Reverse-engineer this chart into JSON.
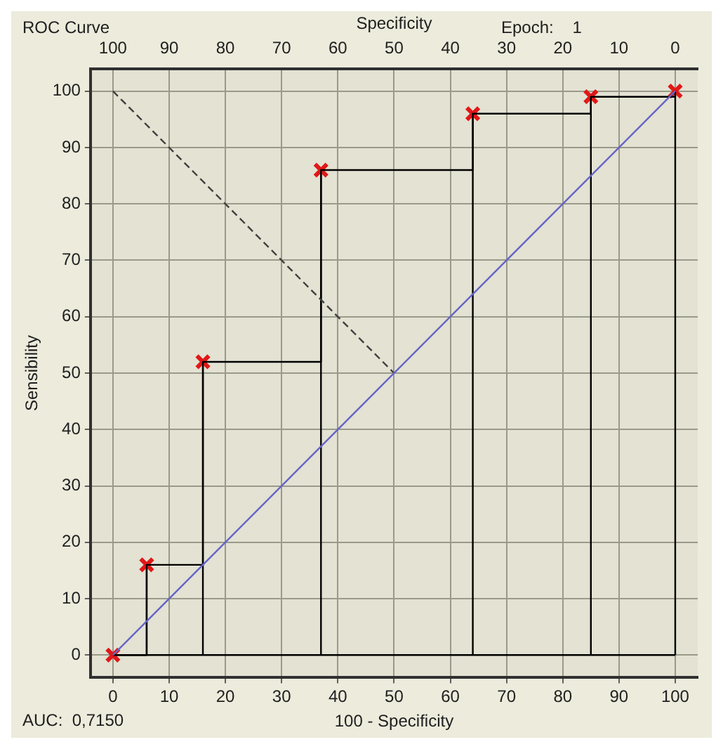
{
  "chart_data": {
    "type": "line",
    "title": "ROC Curve",
    "xlabel": "100 - Specificity",
    "ylabel": "Sensibility",
    "x2label": "Specificity",
    "annotations": [
      "Epoch:    1",
      "AUC:  0,7150"
    ],
    "series": [
      {
        "color": "#6464c8",
        "x": [
          0,
          100
        ],
        "values": [
          0,
          100
        ]
      },
      {
        "color": "#404040",
        "x": [
          0,
          50
        ],
        "values": [
          100,
          50
        ],
        "line_style": "dashed"
      },
      {
        "type": "step",
        "color": "#000000",
        "x": [
          0,
          6,
          16,
          37,
          64,
          85,
          100
        ],
        "values": [
          0,
          16,
          52,
          86,
          96,
          99,
          100
        ]
      },
      {
        "type": "lollipop",
        "color": "#e01818",
        "x": [
          0,
          6,
          16,
          37,
          64,
          85,
          100
        ],
        "values": [
          0,
          16,
          52,
          86,
          96,
          99,
          100
        ],
        "marker": "cross"
      }
    ],
    "xlim": [
      -4,
      104
    ],
    "xticks": [
      0,
      10,
      20,
      30,
      40,
      50,
      60,
      70,
      80,
      90,
      100
    ],
    "x2lim": [
      104,
      -4
    ],
    "x2ticks": [
      100,
      90,
      80,
      70,
      60,
      50,
      40,
      30,
      20,
      10,
      0
    ],
    "ylim": [
      -4,
      104
    ],
    "yticks": [
      0,
      10,
      20,
      30,
      40,
      50,
      60,
      70,
      80,
      90,
      100
    ],
    "grid": true,
    "legend": false
  }
}
